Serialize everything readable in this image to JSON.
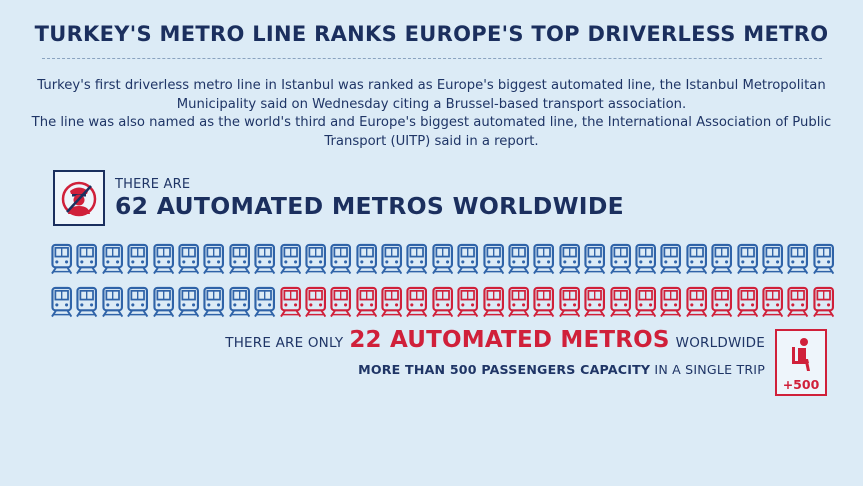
{
  "title": "TURKEY'S METRO LINE RANKS EUROPE'S TOP DRIVERLESS METRO",
  "intro": {
    "paragraph1": "Turkey's first driverless metro line in Istanbul was ranked as Europe's biggest automated line, the Istanbul Metropolitan Municipality said on Wednesday citing a Brussel-based transport association.",
    "paragraph2": "The line was also named as the world's third and Europe's biggest automated line, the International Association of Public Transport (UITP) said in a report."
  },
  "stat1": {
    "lead": "THERE ARE",
    "headline": "62 AUTOMATED METROS WORLDWIDE",
    "icon": "no-driver-icon"
  },
  "trains": {
    "total": 62,
    "highlighted": 22,
    "per_row": 31,
    "colors": {
      "default": "#2f63a8",
      "highlighted": "#d0203a"
    }
  },
  "stat2": {
    "lead": "THERE ARE ONLY",
    "headline": "22 AUTOMATED METROS",
    "tail": "WORLDWIDE",
    "capacity_bold": "MORE THAN 500 PASSENGERS CAPACITY",
    "capacity_rest": "IN A SINGLE TRIP",
    "icon": "seat-icon",
    "icon_label": "+500"
  },
  "colors": {
    "background": "#dcebf6",
    "navy": "#1b2f5e",
    "blue": "#2f63a8",
    "red": "#d0203a"
  }
}
